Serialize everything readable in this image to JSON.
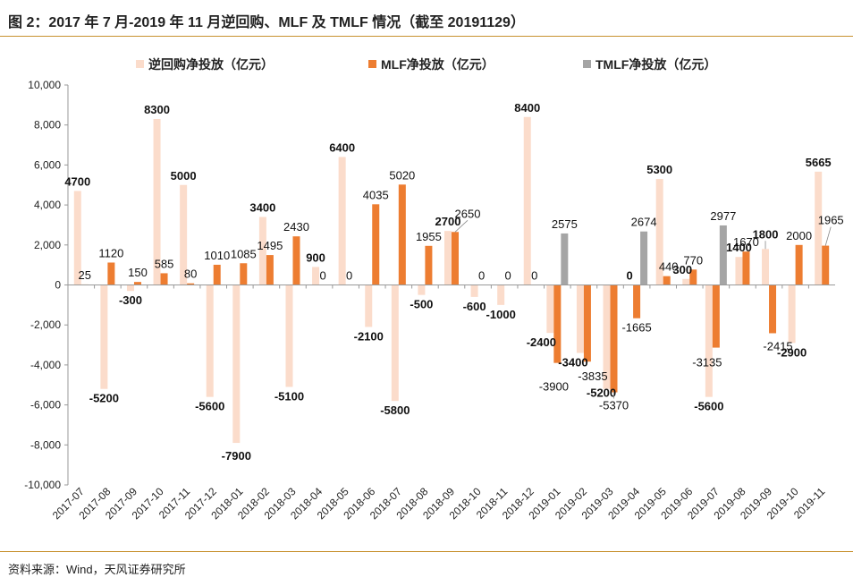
{
  "figure_title": "图 2：2017 年 7 月-2019 年 11 月逆回购、MLF 及 TMLF 情况（截至 20191129）",
  "source_note": "资料来源：Wind，天风证券研究所",
  "colors": {
    "rule": "#C8912F",
    "reverse_repo": "#FBDCCB",
    "mlf": "#ED7D31",
    "tmlf": "#A5A5A5"
  },
  "chart_data": {
    "type": "bar",
    "title": "",
    "xlabel": "",
    "ylabel": "",
    "ylim": [
      -10000,
      10000
    ],
    "yticks": [
      -10000,
      -8000,
      -6000,
      -4000,
      -2000,
      0,
      2000,
      4000,
      6000,
      8000,
      10000
    ],
    "ytick_labels": [
      "-10,000",
      "-8,000",
      "-6,000",
      "-4,000",
      "-2,000",
      "0",
      "2,000",
      "4,000",
      "6,000",
      "8,000",
      "10,000"
    ],
    "grid": false,
    "legend_position": "top",
    "categories": [
      "2017-07",
      "2017-08",
      "2017-09",
      "2017-10",
      "2017-11",
      "2017-12",
      "2018-01",
      "2018-02",
      "2018-03",
      "2018-04",
      "2018-05",
      "2018-06",
      "2018-07",
      "2018-08",
      "2018-09",
      "2018-10",
      "2018-11",
      "2018-12",
      "2019-01",
      "2019-02",
      "2019-03",
      "2019-04",
      "2019-05",
      "2019-06",
      "2019-07",
      "2019-08",
      "2019-09",
      "2019-10",
      "2019-11"
    ],
    "series": [
      {
        "name": "逆回购净投放（亿元）",
        "color": "#FBDCCB",
        "values": [
          4700,
          -5200,
          -300,
          8300,
          5000,
          -5600,
          -7900,
          3400,
          -5100,
          900,
          6400,
          -2100,
          -5800,
          -500,
          2700,
          -600,
          -1000,
          8400,
          -2400,
          -3400,
          -5200,
          0,
          5300,
          300,
          -5600,
          1400,
          1800,
          -2900,
          5665
        ],
        "labels": [
          "4700",
          "-5200",
          "-300",
          "8300",
          "5000",
          "-5600",
          "-7900",
          "3400",
          "-5100",
          "900",
          "6400",
          "-2100",
          "-5800",
          "-500",
          "2700",
          "-600",
          "-1000",
          "8400",
          "-2400",
          "-3400",
          "-5200",
          "0",
          "5300",
          "300",
          "-5600",
          "1400",
          "1800",
          "-2900",
          "5665"
        ]
      },
      {
        "name": "MLF净投放（亿元）",
        "color": "#ED7D31",
        "values": [
          25,
          1120,
          150,
          585,
          80,
          1010,
          1085,
          1495,
          2430,
          0,
          0,
          4035,
          5020,
          1955,
          2650,
          0,
          0,
          0,
          -3900,
          -3835,
          -5370,
          -1665,
          440,
          770,
          -3135,
          1670,
          -2415,
          2000,
          1965
        ],
        "labels": [
          "25",
          "1120",
          "150",
          "585",
          "80",
          "1010",
          "1085",
          "1495",
          "2430",
          "0",
          "0",
          "4035",
          "5020",
          "1955",
          "2650",
          "0",
          "0",
          "0",
          "-3900",
          "-3835",
          "-5370",
          "-1665",
          "440",
          "770",
          "-3135",
          "1670",
          "-2415",
          "2000",
          "1965"
        ]
      },
      {
        "name": "TMLF净投放（亿元）",
        "color": "#A5A5A5",
        "values": [
          null,
          null,
          null,
          null,
          null,
          null,
          null,
          null,
          null,
          null,
          null,
          null,
          null,
          null,
          null,
          null,
          null,
          null,
          2575,
          null,
          null,
          2674,
          null,
          null,
          2977,
          null,
          null,
          null,
          null
        ],
        "labels": [
          "",
          "",
          "",
          "",
          "",
          "",
          "",
          "",
          "",
          "",
          "",
          "",
          "",
          "",
          "",
          "",
          "",
          "",
          "2575",
          "",
          "",
          "2674",
          "",
          "",
          "2977",
          "",
          "",
          "",
          ""
        ]
      }
    ]
  }
}
